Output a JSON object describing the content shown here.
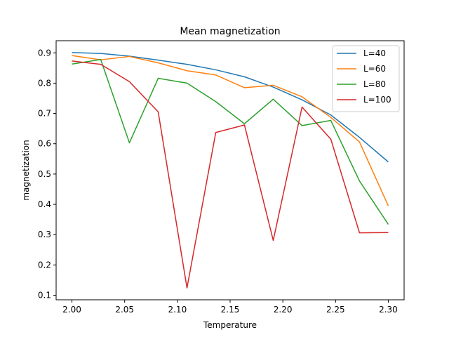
{
  "chart_data": {
    "type": "line",
    "title": "Mean magnetization",
    "xlabel": "Temperature",
    "ylabel": "magnetization",
    "xlim": [
      1.985,
      2.315
    ],
    "ylim": [
      0.085,
      0.94
    ],
    "xticks": [
      "2.00",
      "2.05",
      "2.10",
      "2.15",
      "2.20",
      "2.25",
      "2.30"
    ],
    "yticks": [
      "0.1",
      "0.2",
      "0.3",
      "0.4",
      "0.5",
      "0.6",
      "0.7",
      "0.8",
      "0.9"
    ],
    "grid": false,
    "legend_position": "top-right",
    "x": [
      2.0,
      2.0273,
      2.0545,
      2.0818,
      2.1091,
      2.1364,
      2.1636,
      2.1909,
      2.2182,
      2.2455,
      2.2727,
      2.3
    ],
    "series": [
      {
        "name": "L=40",
        "color": "#1f77b4",
        "values": [
          0.901,
          0.898,
          0.889,
          0.876,
          0.862,
          0.844,
          0.821,
          0.787,
          0.745,
          0.695,
          0.621,
          0.54
        ]
      },
      {
        "name": "L=60",
        "color": "#ff7f0e",
        "values": [
          0.891,
          0.877,
          0.888,
          0.867,
          0.841,
          0.827,
          0.785,
          0.793,
          0.755,
          0.687,
          0.606,
          0.395
        ]
      },
      {
        "name": "L=80",
        "color": "#2ca02c",
        "values": [
          0.863,
          0.878,
          0.603,
          0.816,
          0.8,
          0.739,
          0.666,
          0.747,
          0.66,
          0.677,
          0.477,
          0.334
        ]
      },
      {
        "name": "L=100",
        "color": "#d62728",
        "values": [
          0.873,
          0.862,
          0.805,
          0.705,
          0.124,
          0.637,
          0.662,
          0.281,
          0.721,
          0.615,
          0.306,
          0.307
        ]
      }
    ]
  }
}
